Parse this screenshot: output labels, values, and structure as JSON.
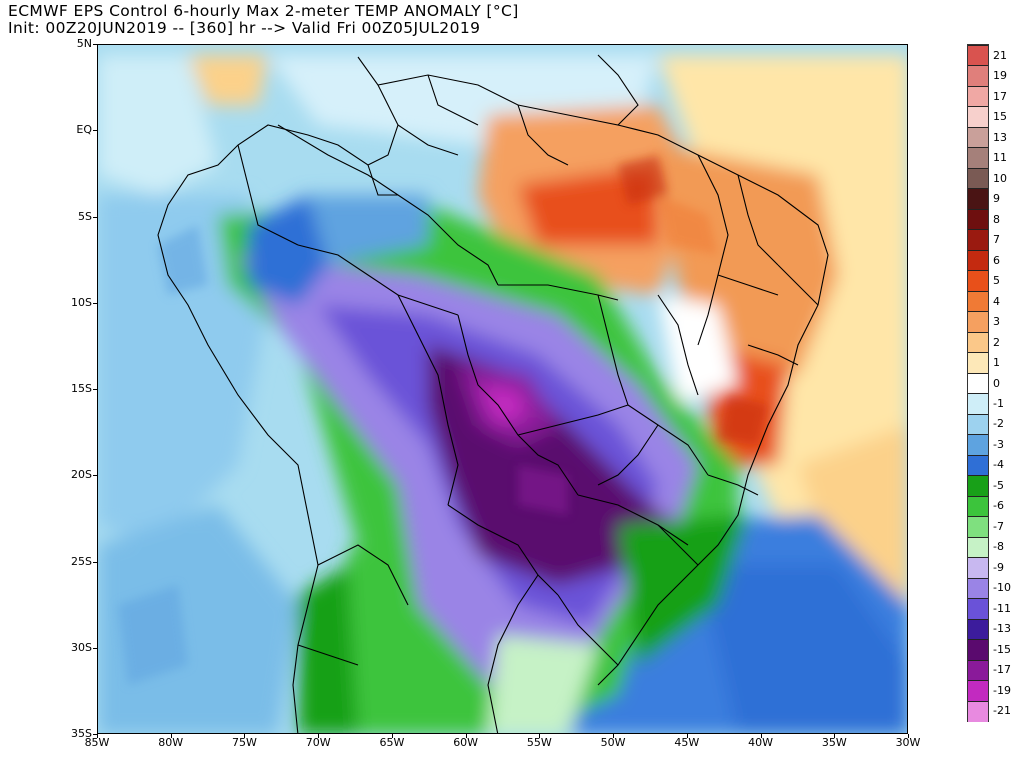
{
  "header": {
    "title_line1": "ECMWF EPS Control 6-hourly Max 2-meter TEMP ANOMALY [°C]",
    "title_line2": "Init: 00Z20JUN2019 -- [360] hr --> Valid Fri 00Z05JUL2019"
  },
  "map": {
    "lat_labels": [
      "5N",
      "EQ",
      "5S",
      "10S",
      "15S",
      "20S",
      "25S",
      "30S",
      "35S"
    ],
    "lon_labels": [
      "85W",
      "80W",
      "75W",
      "70W",
      "65W",
      "60W",
      "55W",
      "50W",
      "45W",
      "40W",
      "35W",
      "30W"
    ],
    "lat_values": [
      5,
      0,
      -5,
      -10,
      -15,
      -20,
      -25,
      -30,
      -35
    ],
    "lon_values": [
      -85,
      -80,
      -75,
      -70,
      -65,
      -60,
      -55,
      -50,
      -45,
      -40,
      -35,
      -30
    ],
    "extent": {
      "lon_min": -85,
      "lon_max": -30,
      "lat_min": -35,
      "lat_max": 5
    }
  },
  "colorbar": {
    "labels": [
      "21",
      "19",
      "17",
      "15",
      "13",
      "11",
      "10",
      "9",
      "8",
      "7",
      "6",
      "5",
      "4",
      "3",
      "2",
      "1",
      "0",
      "-1",
      "-2",
      "-3",
      "-4",
      "-5",
      "-6",
      "-7",
      "-8",
      "-9",
      "-10",
      "-11",
      "-13",
      "-15",
      "-17",
      "-19",
      "-21"
    ],
    "colors": [
      "#d9534f",
      "#e07f7b",
      "#f0a8a4",
      "#f7d0cc",
      "#c9a09a",
      "#a5807a",
      "#7a5a54",
      "#4a1414",
      "#6e0f0f",
      "#9a1a10",
      "#c42a10",
      "#e8501a",
      "#f07a35",
      "#f5a060",
      "#fbc889",
      "#fde8b8",
      "#ffffff",
      "#cfeef8",
      "#9dd2ef",
      "#5ea3e0",
      "#2f6fd6",
      "#18a018",
      "#3cc43c",
      "#7fe07f",
      "#c6f2c6",
      "#c8b8f0",
      "#9a84e6",
      "#6a52d8",
      "#3c1c9c",
      "#5a0a6e",
      "#8a1a9a",
      "#c22ac0",
      "#e88ae0"
    ]
  }
}
